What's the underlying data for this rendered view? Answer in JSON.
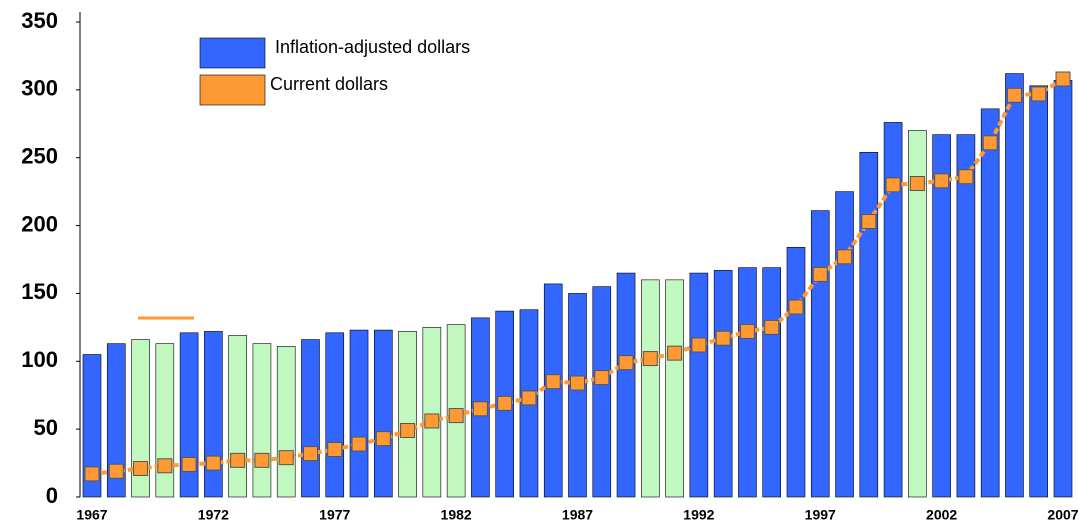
{
  "chart_data": {
    "type": "bar",
    "categories": [
      "1967",
      null,
      null,
      null,
      null,
      "1972",
      null,
      null,
      null,
      null,
      "1977",
      null,
      null,
      null,
      null,
      "1982",
      null,
      null,
      null,
      null,
      "1987",
      null,
      null,
      null,
      null,
      "1992",
      null,
      null,
      null,
      null,
      "1997",
      null,
      null,
      null,
      null,
      "2002",
      null,
      null,
      null,
      null,
      "2007"
    ],
    "series": [
      {
        "name": "Inflation-adjusted dollars",
        "type": "bar",
        "color": "#3366ff",
        "colors": [
          "#3366ff",
          "#3366ff",
          "#c0f8c0",
          "#c0f8c0",
          "#3366ff",
          "#3366ff",
          "#c0f8c0",
          "#c0f8c0",
          "#c0f8c0",
          "#3366ff",
          "#3366ff",
          "#3366ff",
          "#3366ff",
          "#c0f8c0",
          "#c0f8c0",
          "#c0f8c0",
          "#3366ff",
          "#3366ff",
          "#3366ff",
          "#3366ff",
          "#3366ff",
          "#3366ff",
          "#3366ff",
          "#c0f8c0",
          "#c0f8c0",
          "#3366ff",
          "#3366ff",
          "#3366ff",
          "#3366ff",
          "#3366ff",
          "#3366ff",
          "#3366ff",
          "#3366ff",
          "#3366ff",
          "#c0f8c0",
          "#3366ff",
          "#3366ff",
          "#3366ff",
          "#3366ff",
          "#3366ff",
          "#3366ff"
        ],
        "values": [
          105,
          113,
          116,
          113,
          121,
          122,
          119,
          113,
          111,
          116,
          121,
          123,
          123,
          122,
          125,
          127,
          132,
          137,
          138,
          157,
          150,
          155,
          165,
          160,
          160,
          165,
          167,
          169,
          169,
          184,
          211,
          225,
          254,
          276,
          270,
          267,
          267,
          286,
          312,
          303,
          307
        ]
      },
      {
        "name": "Current dollars",
        "type": "line",
        "color": "#ff9933",
        "values": [
          17,
          19,
          21,
          23,
          24,
          25,
          27,
          27,
          29,
          32,
          35,
          39,
          43,
          49,
          56,
          60,
          65,
          69,
          73,
          85,
          84,
          88,
          99,
          102,
          106,
          112,
          117,
          122,
          125,
          140,
          164,
          177,
          203,
          230,
          231,
          233,
          236,
          261,
          296,
          297,
          308
        ]
      }
    ],
    "ylim": [
      0,
      350
    ],
    "yticks": [
      0,
      50,
      100,
      150,
      200,
      250,
      300,
      350
    ],
    "grid": false
  }
}
